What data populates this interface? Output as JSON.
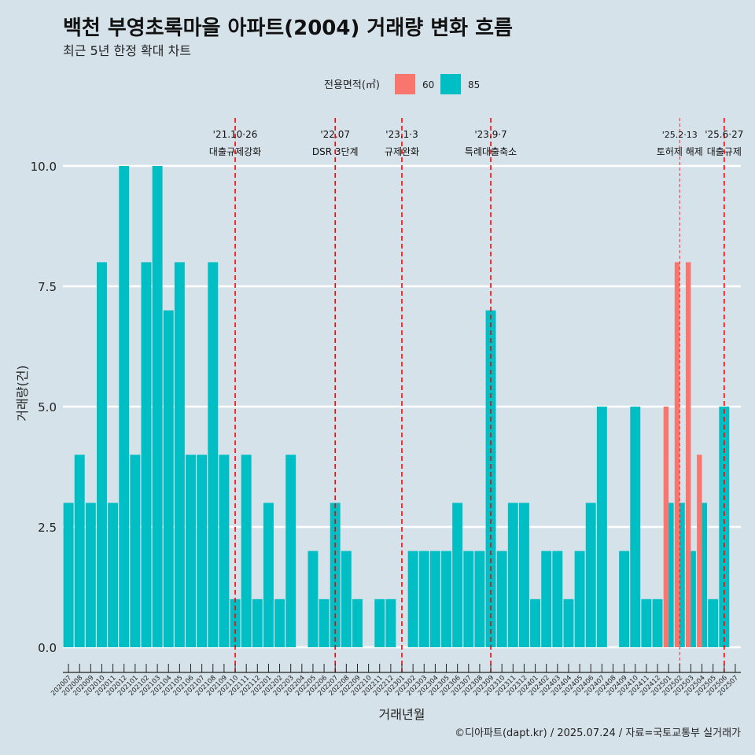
{
  "colors": {
    "background": "#d6e2ea",
    "grid": "#ffffff",
    "annotation": "#ff0000",
    "area_60": "#f8766d",
    "area_85": "#00bfc4"
  },
  "chart_data": {
    "type": "bar",
    "title": "백천 부영초록마을 아파트(2004) 거래량 변화 흐름",
    "subtitle": "최근 5년 한정 확대 차트",
    "xlabel": "거래년월",
    "ylabel": "거래량(건)",
    "caption": "©디아파트(dapt.kr) / 2025.07.24 / 자료=국토교통부 실거래가",
    "legend": {
      "title": "전용면적(㎡)",
      "position": "top",
      "items": [
        "60",
        "85"
      ]
    },
    "ylim": [
      0,
      10.5
    ],
    "y_ticks": [
      0,
      2.5,
      5,
      7.5,
      10
    ],
    "y_tick_labels": [
      "0.0",
      "2.5",
      "5.0",
      "7.5",
      "10.0"
    ],
    "grid": true,
    "categories": [
      "202007",
      "202008",
      "202009",
      "202010",
      "202011",
      "202012",
      "202101",
      "202102",
      "202103",
      "202104",
      "202105",
      "202106",
      "202107",
      "202108",
      "202109",
      "202110",
      "202111",
      "202112",
      "202201",
      "202202",
      "202203",
      "202204",
      "202205",
      "202206",
      "202207",
      "202208",
      "202209",
      "202210",
      "202211",
      "202212",
      "202301",
      "202302",
      "202303",
      "202304",
      "202305",
      "202306",
      "202307",
      "202308",
      "202309",
      "202310",
      "202311",
      "202312",
      "202401",
      "202402",
      "202403",
      "202404",
      "202405",
      "202406",
      "202407",
      "202408",
      "202409",
      "202410",
      "202411",
      "202412",
      "202501",
      "202502",
      "202503",
      "202504",
      "202505",
      "202506",
      "202507"
    ],
    "series": [
      {
        "name": "60",
        "values": [
          0,
          0,
          0,
          0,
          0,
          0,
          0,
          0,
          0,
          0,
          0,
          0,
          0,
          0,
          0,
          0,
          0,
          0,
          0,
          0,
          0,
          0,
          0,
          0,
          0,
          0,
          0,
          0,
          0,
          0,
          0,
          0,
          0,
          0,
          0,
          0,
          0,
          0,
          0,
          0,
          0,
          0,
          0,
          0,
          0,
          0,
          0,
          0,
          0,
          0,
          0,
          0,
          0,
          0,
          5,
          8,
          8,
          4,
          0,
          0,
          0
        ]
      },
      {
        "name": "85",
        "values": [
          3,
          4,
          3,
          8,
          3,
          10,
          4,
          8,
          10,
          7,
          8,
          4,
          4,
          8,
          4,
          1,
          4,
          1,
          3,
          1,
          4,
          0,
          2,
          1,
          3,
          2,
          1,
          0,
          1,
          1,
          0,
          2,
          2,
          2,
          2,
          3,
          2,
          2,
          7,
          2,
          3,
          3,
          1,
          2,
          2,
          1,
          2,
          3,
          5,
          0,
          2,
          5,
          1,
          1,
          3,
          3,
          2,
          3,
          1,
          5,
          0
        ]
      }
    ],
    "annotations": [
      {
        "category": "202110",
        "date": "'21.10·26",
        "label": "대출규제강화",
        "style": "dashed"
      },
      {
        "category": "202207",
        "date": "'22.07",
        "label": "DSR 3단계",
        "style": "dashed"
      },
      {
        "category": "202301",
        "date": "'23.1·3",
        "label": "규제완화",
        "style": "dashed"
      },
      {
        "category": "202309",
        "date": "'23.9·7",
        "label": "특례대출축소",
        "style": "dashed"
      },
      {
        "category": "202502",
        "date": "'25.2·13",
        "label": "토허제 해제",
        "style": "thin"
      },
      {
        "category": "202506",
        "date": "'25.6·27",
        "label": "대출규제",
        "style": "dashed"
      }
    ]
  }
}
